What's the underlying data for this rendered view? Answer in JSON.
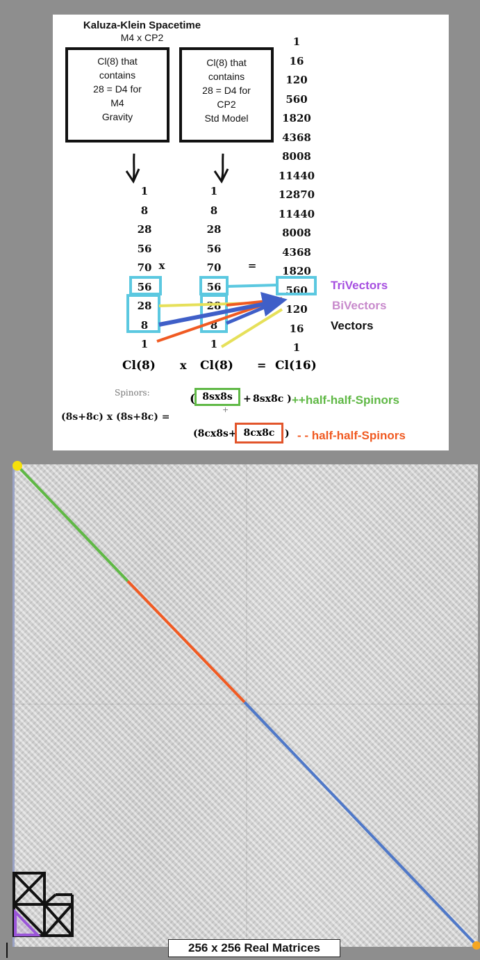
{
  "header": {
    "title": "Kaluza-Klein Spacetime",
    "subtitle": "M4 x CP2"
  },
  "box_gravity": {
    "lines": [
      "Cl(8) that",
      "contains",
      "28 = D4 for",
      "M4",
      "Gravity"
    ]
  },
  "box_std_model": {
    "lines": [
      "Cl(8) that",
      "contains",
      "28 = D4 for",
      "CP2",
      "Std Model"
    ]
  },
  "cl16_column": [
    "1",
    "16",
    "120",
    "560",
    "1820",
    "4368",
    "8008",
    "11440",
    "12870",
    "11440",
    "8008",
    "4368",
    "1820",
    "560",
    "120",
    "16",
    "1"
  ],
  "cl8_column": [
    "1",
    "8",
    "28",
    "56",
    "70",
    "56",
    "28",
    "8",
    "1"
  ],
  "operators": {
    "times": "x",
    "equals": "="
  },
  "bottom_row": {
    "left": "Cl(8)",
    "times": "x",
    "middle": "Cl(8)",
    "equals": "=",
    "right": "Cl(16)"
  },
  "right_labels": {
    "trivectors": "TriVectors",
    "bivectors": "BiVectors",
    "vectors": "Vectors"
  },
  "spinors": {
    "label": "Spinors:",
    "lhs": "(8s+8c) x (8s+8c) =",
    "plus_line1_open": "(",
    "term_ss": "8sx8s",
    "plus": "+",
    "term_sc": "8sx8c )",
    "line2_open": "(8cx8s+",
    "term_cc": "8cx8c",
    "line2_close": ")",
    "pp_label": "++half-half-Spinors",
    "mm_label": "- - half-half-Spinors"
  },
  "colors": {
    "cyan": "#5bc8e0",
    "yellow": "#e6e05a",
    "blue": "#3f5fc8",
    "orange": "#f05a22",
    "green": "#5fb845",
    "purple": "#a64fe0",
    "pink": "#c88acc",
    "diag_green": "#5fb845",
    "diag_orange": "#f05a22",
    "diag_blue": "#4f78c8",
    "dot_yellow": "#f6e10a",
    "dot_orange": "#f5a623"
  },
  "matrix_caption": "256 x 256 Real Matrices"
}
